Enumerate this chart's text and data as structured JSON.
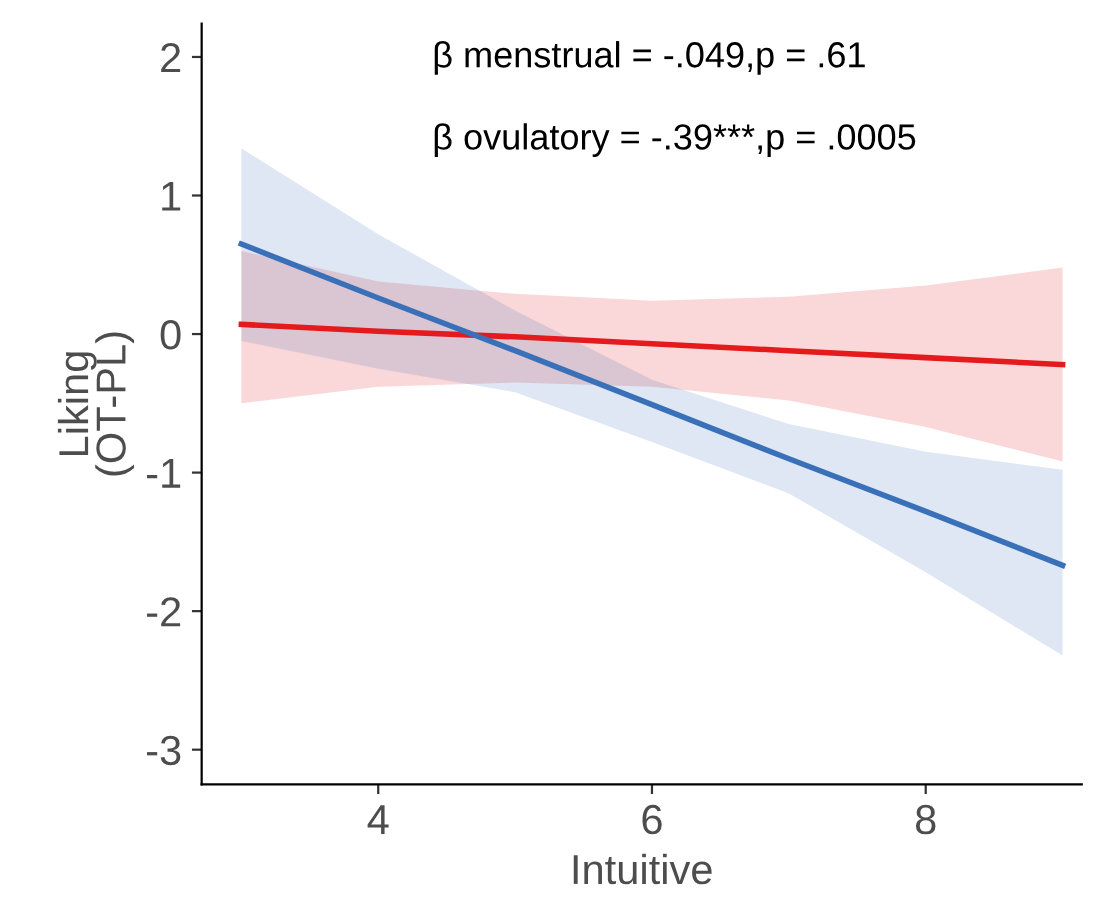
{
  "chart_data": {
    "type": "line",
    "xlabel": "Intuitive",
    "ylabel": "Liking\n(OT-PL)",
    "annotations": [
      "β menstrual = -.049,p = .61",
      "β ovulatory = -.39***,p = .0005"
    ],
    "x": [
      3,
      4,
      5,
      6,
      7,
      8,
      9
    ],
    "series": [
      {
        "color": "#e41a1c",
        "values": [
          0.07,
          0.02,
          -0.02,
          -0.07,
          -0.12,
          -0.17,
          -0.22
        ],
        "upper": [
          0.6,
          0.38,
          0.29,
          0.24,
          0.27,
          0.35,
          0.48
        ],
        "lower": [
          -0.5,
          -0.38,
          -0.35,
          -0.38,
          -0.48,
          -0.67,
          -0.92
        ]
      },
      {
        "color": "#3a70b8",
        "values": [
          0.65,
          0.26,
          -0.12,
          -0.51,
          -0.9,
          -1.28,
          -1.67
        ],
        "upper": [
          1.34,
          0.72,
          0.17,
          -0.33,
          -0.65,
          -0.85,
          -0.98
        ],
        "lower": [
          -0.05,
          -0.25,
          -0.42,
          -0.78,
          -1.15,
          -1.72,
          -2.32
        ]
      }
    ],
    "xlim": [
      2.71,
      9.14
    ],
    "ylim": [
      -3.25,
      2.24
    ],
    "xticks": [
      4,
      6,
      8
    ],
    "yticks": [
      2,
      1,
      0,
      -1,
      -2,
      -3
    ],
    "grid": false,
    "legend": false,
    "marker": "none",
    "line_style": "solid"
  }
}
